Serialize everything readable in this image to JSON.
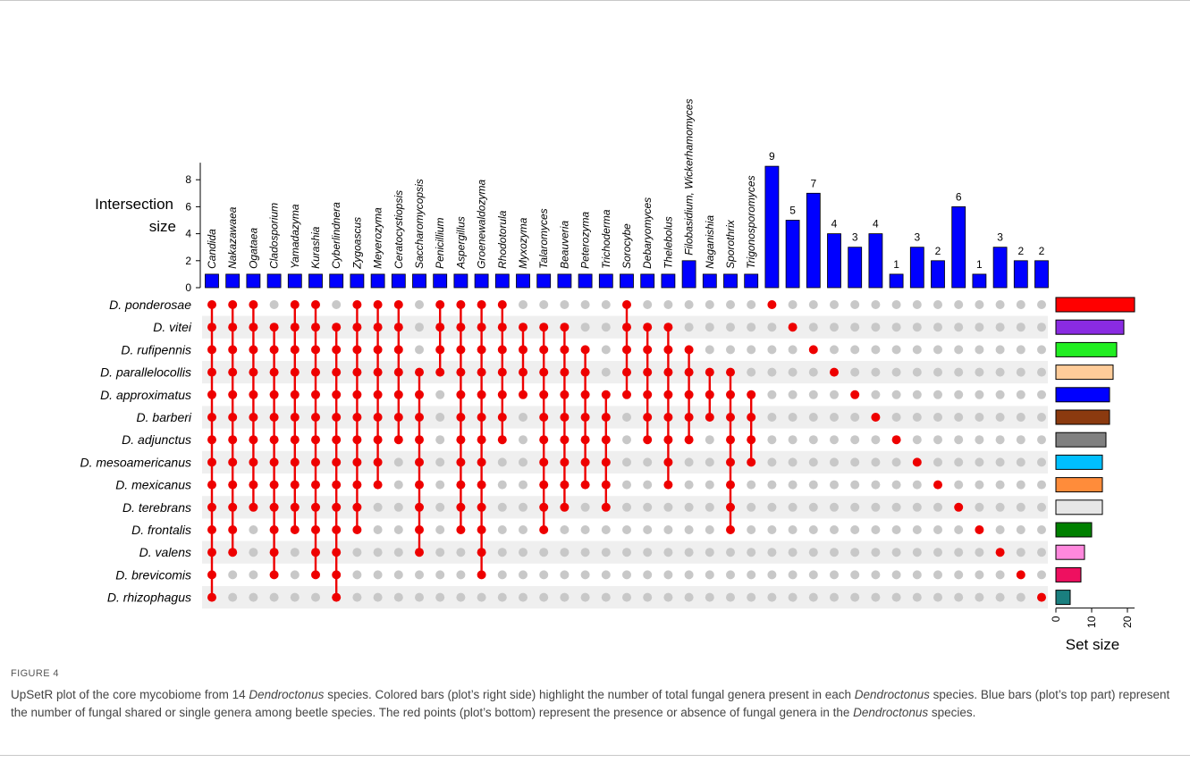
{
  "chart_data": {
    "type": "upset",
    "intersection_axis_label": "Intersection size",
    "intersection_ticks": [
      0,
      2,
      4,
      6,
      8
    ],
    "intersection_ylim": [
      0,
      9
    ],
    "set_axis_label": "Set size",
    "set_ticks": [
      0,
      10,
      20
    ],
    "set_xlim": [
      0,
      22
    ],
    "sets": [
      {
        "name": "D. ponderosae",
        "size": 22,
        "color": "#ff0000"
      },
      {
        "name": "D. vitei",
        "size": 19,
        "color": "#8a2be2"
      },
      {
        "name": "D. rufipennis",
        "size": 17,
        "color": "#22ee22"
      },
      {
        "name": "D. parallelocollis",
        "size": 16,
        "color": "#ffcc99"
      },
      {
        "name": "D. approximatus",
        "size": 15,
        "color": "#0000ff"
      },
      {
        "name": "D. barberi",
        "size": 15,
        "color": "#8b3a0f"
      },
      {
        "name": "D. adjunctus",
        "size": 14,
        "color": "#808080"
      },
      {
        "name": "D. mesoamericanus",
        "size": 13,
        "color": "#00bfff"
      },
      {
        "name": "D. mexicanus",
        "size": 13,
        "color": "#ff8c3a"
      },
      {
        "name": "D. terebrans",
        "size": 13,
        "color": "#e6e6e6"
      },
      {
        "name": "D. frontalis",
        "size": 10,
        "color": "#008000"
      },
      {
        "name": "D. valens",
        "size": 8,
        "color": "#ff88dd"
      },
      {
        "name": "D. brevicomis",
        "size": 7,
        "color": "#ee1060"
      },
      {
        "name": "D. rhizophagus",
        "size": 4,
        "color": "#1a7f7f"
      }
    ],
    "intersections": [
      {
        "label": "Candida",
        "size": 1,
        "sets": [
          0,
          1,
          2,
          3,
          4,
          5,
          6,
          7,
          8,
          9,
          10,
          11,
          12,
          13
        ]
      },
      {
        "label": "Nakazawaea",
        "size": 1,
        "sets": [
          0,
          1,
          2,
          3,
          4,
          5,
          6,
          7,
          8,
          9,
          10,
          11
        ]
      },
      {
        "label": "Ogataea",
        "size": 1,
        "sets": [
          0,
          1,
          2,
          3,
          4,
          5,
          6,
          7,
          8,
          9
        ]
      },
      {
        "label": "Cladosporium",
        "size": 1,
        "sets": [
          1,
          2,
          3,
          4,
          5,
          6,
          7,
          8,
          9,
          10,
          11,
          12
        ]
      },
      {
        "label": "Yamadazyma",
        "size": 1,
        "sets": [
          0,
          1,
          2,
          3,
          4,
          5,
          6,
          7,
          8,
          9,
          10
        ]
      },
      {
        "label": "Kurashia",
        "size": 1,
        "sets": [
          0,
          1,
          2,
          3,
          4,
          5,
          6,
          7,
          8,
          9,
          10,
          11,
          12
        ]
      },
      {
        "label": "Cyberlindnera",
        "size": 1,
        "sets": [
          1,
          2,
          3,
          4,
          5,
          6,
          7,
          8,
          9,
          10,
          11,
          12,
          13
        ]
      },
      {
        "label": "Zygoascus",
        "size": 1,
        "sets": [
          0,
          1,
          2,
          3,
          4,
          5,
          6,
          7,
          8,
          9,
          10
        ]
      },
      {
        "label": "Meyerozyma",
        "size": 1,
        "sets": [
          0,
          1,
          2,
          3,
          4,
          5,
          6,
          7,
          8
        ]
      },
      {
        "label": "Ceratocystiopsis",
        "size": 1,
        "sets": [
          0,
          1,
          2,
          3,
          4,
          5,
          6
        ]
      },
      {
        "label": "Saccharomycopsis",
        "size": 1,
        "sets": [
          3,
          4,
          5,
          6,
          7,
          8,
          9,
          10,
          11
        ]
      },
      {
        "label": "Penicillium",
        "size": 1,
        "sets": [
          0,
          1,
          2,
          3
        ]
      },
      {
        "label": "Aspergillus",
        "size": 1,
        "sets": [
          0,
          1,
          2,
          3,
          4,
          5,
          6,
          7,
          8,
          9,
          10
        ]
      },
      {
        "label": "Groenewaldozyma",
        "size": 1,
        "sets": [
          0,
          1,
          2,
          3,
          4,
          5,
          6,
          7,
          8,
          9,
          10,
          11,
          12
        ]
      },
      {
        "label": "Rhodotorula",
        "size": 1,
        "sets": [
          0,
          1,
          2,
          3,
          4,
          5,
          6
        ]
      },
      {
        "label": "Myxozyma",
        "size": 1,
        "sets": [
          1,
          2,
          3,
          4
        ]
      },
      {
        "label": "Talaromyces",
        "size": 1,
        "sets": [
          1,
          2,
          3,
          4,
          5,
          6,
          7,
          8,
          9,
          10
        ]
      },
      {
        "label": "Beauveria",
        "size": 1,
        "sets": [
          1,
          2,
          3,
          4,
          5,
          6,
          7,
          8,
          9
        ]
      },
      {
        "label": "Peterozyma",
        "size": 1,
        "sets": [
          2,
          3,
          4,
          5,
          6,
          7,
          8
        ]
      },
      {
        "label": "Trichoderma",
        "size": 1,
        "sets": [
          4,
          5,
          6,
          7,
          8,
          9
        ]
      },
      {
        "label": "Sorocybe",
        "size": 1,
        "sets": [
          0,
          1,
          2,
          3,
          4
        ]
      },
      {
        "label": "Debaryomyces",
        "size": 1,
        "sets": [
          1,
          2,
          3,
          4,
          5,
          6
        ]
      },
      {
        "label": "Thelebolus",
        "size": 1,
        "sets": [
          1,
          2,
          3,
          4,
          5,
          6,
          7,
          8
        ]
      },
      {
        "label": "Filobasidium, Wickerhamomyces",
        "size": 2,
        "sets": [
          2,
          3,
          4,
          5,
          6
        ]
      },
      {
        "label": "Naganishia",
        "size": 1,
        "sets": [
          3,
          4,
          5
        ]
      },
      {
        "label": "Sporothrix",
        "size": 1,
        "sets": [
          3,
          4,
          5,
          6,
          7,
          8,
          9,
          10
        ]
      },
      {
        "label": "Trigonosporomyces",
        "size": 1,
        "sets": [
          4,
          5,
          6,
          7
        ]
      },
      {
        "label": "",
        "size": 9,
        "sets": [
          0
        ],
        "value_label": "9"
      },
      {
        "label": "",
        "size": 5,
        "sets": [
          1
        ],
        "value_label": "5"
      },
      {
        "label": "",
        "size": 7,
        "sets": [
          2
        ],
        "value_label": "7"
      },
      {
        "label": "",
        "size": 4,
        "sets": [
          3
        ],
        "value_label": "4"
      },
      {
        "label": "",
        "size": 3,
        "sets": [
          4
        ],
        "value_label": "3"
      },
      {
        "label": "",
        "size": 4,
        "sets": [
          5
        ],
        "value_label": "4"
      },
      {
        "label": "",
        "size": 1,
        "sets": [
          6
        ],
        "value_label": "1"
      },
      {
        "label": "",
        "size": 3,
        "sets": [
          7
        ],
        "value_label": "3"
      },
      {
        "label": "",
        "size": 2,
        "sets": [
          8
        ],
        "value_label": "2"
      },
      {
        "label": "",
        "size": 6,
        "sets": [
          9
        ],
        "value_label": "6"
      },
      {
        "label": "",
        "size": 1,
        "sets": [
          10
        ],
        "value_label": "1"
      },
      {
        "label": "",
        "size": 3,
        "sets": [
          11
        ],
        "value_label": "3"
      },
      {
        "label": "",
        "size": 2,
        "sets": [
          12
        ],
        "value_label": "2"
      },
      {
        "label": "",
        "size": 2,
        "sets": [
          13
        ],
        "value_label": "2"
      }
    ],
    "colors": {
      "intersection_bar": "#0000ff",
      "dot_active": "#ee0000",
      "dot_inactive": "#c8c8c8",
      "row_stripe": "#efefef"
    }
  },
  "caption": {
    "figure_label": "FIGURE 4",
    "text_parts": [
      {
        "t": "UpSetR plot of the core mycobiome from 14 ",
        "i": false
      },
      {
        "t": "Dendroctonus",
        "i": true
      },
      {
        "t": " species. Colored bars (plot’s right side) highlight the number of total fungal genera present in each ",
        "i": false
      },
      {
        "t": "Dendroctonus",
        "i": true
      },
      {
        "t": " species. Blue bars (plot’s top part) represent the number of fungal shared or single genera among beetle species. The red points (plot’s bottom) represent the presence or absence of fungal genera in the ",
        "i": false
      },
      {
        "t": "Dendroctonus",
        "i": true
      },
      {
        "t": " species.",
        "i": false
      }
    ]
  }
}
